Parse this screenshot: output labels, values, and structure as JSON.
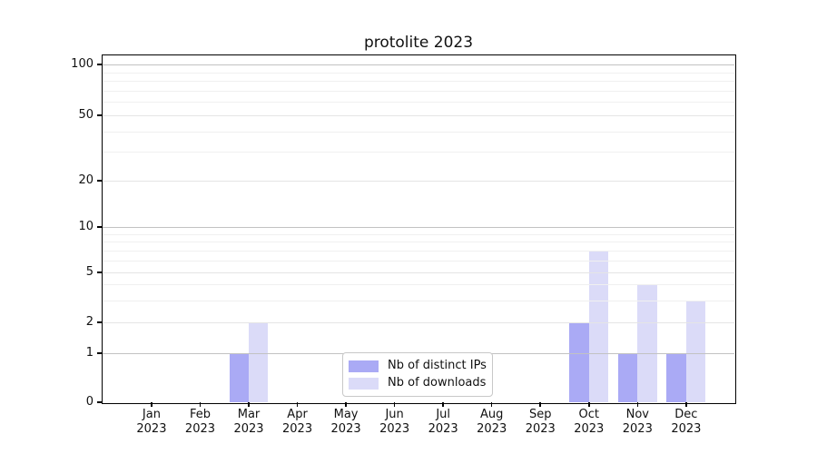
{
  "chart_data": {
    "type": "bar",
    "title": "protolite 2023",
    "categories": [
      {
        "month": "Jan",
        "year": "2023"
      },
      {
        "month": "Feb",
        "year": "2023"
      },
      {
        "month": "Mar",
        "year": "2023"
      },
      {
        "month": "Apr",
        "year": "2023"
      },
      {
        "month": "May",
        "year": "2023"
      },
      {
        "month": "Jun",
        "year": "2023"
      },
      {
        "month": "Jul",
        "year": "2023"
      },
      {
        "month": "Aug",
        "year": "2023"
      },
      {
        "month": "Sep",
        "year": "2023"
      },
      {
        "month": "Oct",
        "year": "2023"
      },
      {
        "month": "Nov",
        "year": "2023"
      },
      {
        "month": "Dec",
        "year": "2023"
      }
    ],
    "series": [
      {
        "name": "Nb of distinct IPs",
        "color": "#aaaaf5",
        "values": [
          0,
          0,
          1,
          0,
          0,
          0,
          0,
          0,
          0,
          2,
          1,
          1
        ]
      },
      {
        "name": "Nb of downloads",
        "color": "#dbdbf8",
        "values": [
          0,
          0,
          2,
          0,
          0,
          0,
          0,
          0,
          0,
          7,
          4,
          3
        ]
      }
    ],
    "yticks": [
      0,
      1,
      2,
      5,
      10,
      20,
      50,
      100
    ],
    "yticks_minor": [
      3,
      4,
      6,
      7,
      8,
      9,
      30,
      40,
      60,
      70,
      80,
      90
    ],
    "ylim": [
      0,
      115
    ],
    "xlabel": "",
    "ylabel": "",
    "grid": true,
    "legend_position": "bottom-center",
    "scale": "log-like above 1, linear 0-1"
  }
}
